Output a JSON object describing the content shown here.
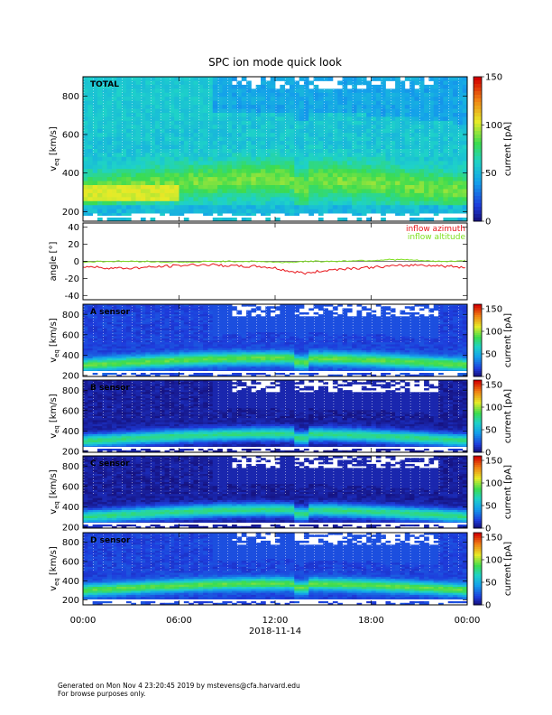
{
  "title": "SPC ion mode quick look",
  "footer": {
    "line1": "Generated on Mon Nov  4 23:20:45 2019 by mstevens@cfa.harvard.edu",
    "line2": "For browse purposes only."
  },
  "colors": {
    "azimuth": "#e8141a",
    "altitude": "#7fe020",
    "background": "#ffffff"
  },
  "chart_data": [
    {
      "type": "heatmap",
      "panel": "TOTAL",
      "label": "TOTAL",
      "ylabel": "v",
      "ylabel_sub": "eq",
      "ylabel_unit": "[km/s]",
      "ylim": [
        150,
        900
      ],
      "yticks": [
        200,
        400,
        600,
        800
      ],
      "colorbar": {
        "label": "current [pA]",
        "range": [
          0,
          150
        ],
        "ticks": [
          0,
          50,
          100,
          150
        ]
      }
    },
    {
      "type": "line",
      "panel": "angle",
      "ylabel": "angle [°]",
      "ylim": [
        -45,
        45
      ],
      "yticks": [
        -40,
        -20,
        0,
        20,
        40
      ],
      "x_hours": [
        0,
        1,
        2,
        3,
        4,
        5,
        6,
        7,
        8,
        9,
        10,
        11,
        12,
        13,
        14,
        15,
        16,
        17,
        18,
        19,
        20,
        21,
        22,
        23,
        24
      ],
      "series": [
        {
          "name": "inflow azimuth",
          "color": "#e8141a",
          "values": [
            -6,
            -7,
            -8,
            -8,
            -7,
            -6,
            -5,
            -4,
            -4,
            -5,
            -6,
            -6,
            -8,
            -12,
            -14,
            -11,
            -9,
            -8,
            -7,
            -6,
            -5,
            -4,
            -5,
            -6,
            -7
          ]
        },
        {
          "name": "inflow altitude",
          "color": "#7fe020",
          "values": [
            -1,
            0,
            0,
            0,
            0,
            -1,
            -1,
            -1,
            0,
            0,
            0,
            0,
            -1,
            -1,
            0,
            0,
            0,
            1,
            1,
            2,
            2,
            1,
            0,
            0,
            1
          ]
        }
      ]
    },
    {
      "type": "heatmap",
      "panel": "A sensor",
      "label": "A sensor",
      "ylabel": "v",
      "ylabel_sub": "eq",
      "ylabel_unit": "[km/s]",
      "ylim": [
        190,
        900
      ],
      "yticks": [
        200,
        400,
        600,
        800
      ],
      "colorbar": {
        "label": "current [pA]",
        "range": [
          0,
          160
        ],
        "ticks": [
          0,
          50,
          100,
          150
        ]
      }
    },
    {
      "type": "heatmap",
      "panel": "B sensor",
      "label": "B sensor",
      "ylabel": "v",
      "ylabel_sub": "eq",
      "ylabel_unit": "[km/s]",
      "ylim": [
        190,
        900
      ],
      "yticks": [
        200,
        400,
        600,
        800
      ],
      "colorbar": {
        "label": "current [pA]",
        "range": [
          0,
          160
        ],
        "ticks": [
          0,
          50,
          100,
          150
        ]
      }
    },
    {
      "type": "heatmap",
      "panel": "C sensor",
      "label": "C sensor",
      "ylabel": "v",
      "ylabel_sub": "eq",
      "ylabel_unit": "[km/s]",
      "ylim": [
        190,
        900
      ],
      "yticks": [
        200,
        400,
        600,
        800
      ],
      "colorbar": {
        "label": "current [pA]",
        "range": [
          0,
          160
        ],
        "ticks": [
          0,
          50,
          100,
          150
        ]
      }
    },
    {
      "type": "heatmap",
      "panel": "D sensor",
      "label": "D sensor",
      "ylabel": "v",
      "ylabel_sub": "eq",
      "ylabel_unit": "[km/s]",
      "ylim": [
        150,
        900
      ],
      "yticks": [
        200,
        400,
        600,
        800
      ],
      "colorbar": {
        "label": "current [pA]",
        "range": [
          0,
          160
        ],
        "ticks": [
          0,
          50,
          100,
          150
        ]
      }
    }
  ],
  "xaxis": {
    "tick_labels": [
      "00:00",
      "06:00",
      "12:00",
      "18:00",
      "00:00"
    ],
    "tick_hours": [
      0,
      6,
      12,
      18,
      24
    ],
    "date_label": "2018-11-14"
  }
}
